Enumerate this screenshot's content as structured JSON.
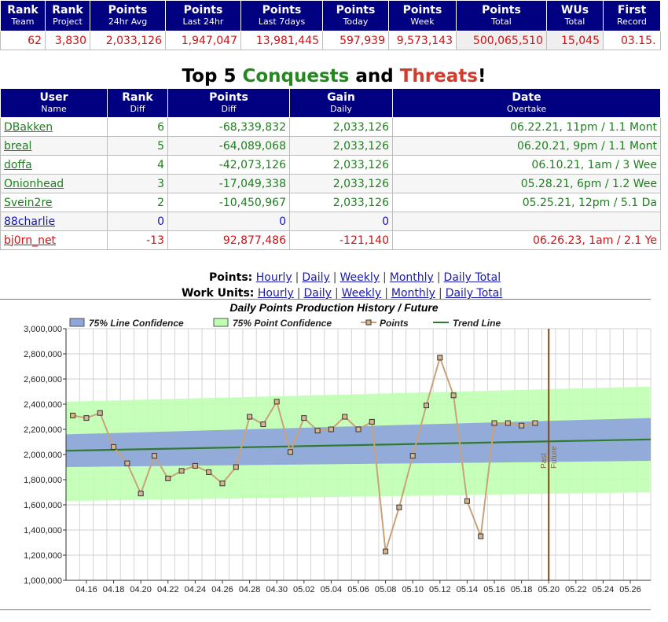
{
  "stats_table": {
    "headers": [
      {
        "top": "Rank",
        "sub": "Team"
      },
      {
        "top": "Rank",
        "sub": "Project"
      },
      {
        "top": "Points",
        "sub": "24hr Avg"
      },
      {
        "top": "Points",
        "sub": "Last 24hr"
      },
      {
        "top": "Points",
        "sub": "Last 7days"
      },
      {
        "top": "Points",
        "sub": "Today"
      },
      {
        "top": "Points",
        "sub": "Week"
      },
      {
        "top": "Points",
        "sub": "Total"
      },
      {
        "top": "WUs",
        "sub": "Total"
      },
      {
        "top": "First",
        "sub": "Record"
      }
    ],
    "row": [
      "62",
      "3,830",
      "2,033,126",
      "1,947,047",
      "13,981,445",
      "597,939",
      "9,573,143",
      "500,065,510",
      "15,045",
      "03.15."
    ]
  },
  "section_title": {
    "part1": "Top 5 ",
    "part2": "Conquests",
    "part3": " and ",
    "part4": "Threats",
    "part5": "!"
  },
  "conquest_table": {
    "headers": [
      {
        "top": "User",
        "sub": "Name"
      },
      {
        "top": "Rank",
        "sub": "Diff"
      },
      {
        "top": "Points",
        "sub": "Diff"
      },
      {
        "top": "Gain",
        "sub": "Daily"
      },
      {
        "top": "Date",
        "sub": "Overtake"
      }
    ],
    "rows": [
      {
        "user": "DBakken",
        "rank_diff": "6",
        "points_diff": "-68,339,832",
        "gain": "2,033,126",
        "date": "06.22.21, 11pm / 1.1 Mont",
        "status": "green"
      },
      {
        "user": "breal",
        "rank_diff": "5",
        "points_diff": "-64,089,068",
        "gain": "2,033,126",
        "date": "06.20.21, 9pm / 1.1 Mont",
        "status": "green"
      },
      {
        "user": "doffa",
        "rank_diff": "4",
        "points_diff": "-42,073,126",
        "gain": "2,033,126",
        "date": "06.10.21, 1am / 3 Wee",
        "status": "green"
      },
      {
        "user": "Onionhead",
        "rank_diff": "3",
        "points_diff": "-17,049,338",
        "gain": "2,033,126",
        "date": "05.28.21, 6pm / 1.2 Wee",
        "status": "green"
      },
      {
        "user": "Svein2re",
        "rank_diff": "2",
        "points_diff": "-10,450,967",
        "gain": "2,033,126",
        "date": "05.25.21, 12pm / 5.1 Da",
        "status": "green"
      },
      {
        "user": "88charlie",
        "rank_diff": "0",
        "points_diff": "0",
        "gain": "0",
        "date": "",
        "status": "blue"
      },
      {
        "user": "bj0rn_net",
        "rank_diff": "-13",
        "points_diff": "92,877,486",
        "gain": "-121,140",
        "date": "06.26.23, 1am / 2.1 Ye",
        "status": "red"
      }
    ]
  },
  "points_links": {
    "label": "Points:",
    "items": [
      "Hourly",
      "Daily",
      "Weekly",
      "Monthly",
      "Daily Total"
    ]
  },
  "wu_links": {
    "label": "Work Units:",
    "items": [
      "Hourly",
      "Daily",
      "Weekly",
      "Monthly",
      "Daily Total"
    ]
  },
  "colors": {
    "header_bg": "#000080",
    "line_confidence": "#8fa6da",
    "point_confidence": "#bfffb2",
    "points_line": "#c9a27a",
    "trend_line": "#2f7a2f",
    "past_future_line": "#8b4513"
  },
  "chart_data": {
    "type": "line",
    "title": "Daily Points Production History / Future",
    "legend": [
      "75% Line Confidence",
      "75% Point Confidence",
      "Points",
      "Trend Line"
    ],
    "legend_position": "top",
    "x_tick_labels": [
      "04.16",
      "04.18",
      "04.20",
      "04.22",
      "04.24",
      "04.26",
      "04.28",
      "04.30",
      "05.02",
      "05.04",
      "05.06",
      "05.08",
      "05.10",
      "05.12",
      "05.14",
      "05.16",
      "05.18",
      "05.20",
      "05.22",
      "05.24",
      "05.26"
    ],
    "y_tick_labels": [
      "1,000,000",
      "1,200,000",
      "1,400,000",
      "1,600,000",
      "1,800,000",
      "2,000,000",
      "2,200,000",
      "2,400,000",
      "2,600,000",
      "2,800,000",
      "3,000,000"
    ],
    "ylim": [
      1000000,
      3000000
    ],
    "x_start": "04.15",
    "x_end": "05.27",
    "grid": true,
    "divider": {
      "x": "05.20",
      "labels": [
        "Past",
        "Future"
      ]
    },
    "points": {
      "x": [
        "04.15",
        "04.16",
        "04.17",
        "04.18",
        "04.19",
        "04.20",
        "04.21",
        "04.22",
        "04.23",
        "04.24",
        "04.25",
        "04.26",
        "04.27",
        "04.28",
        "04.29",
        "04.30",
        "05.01",
        "05.02",
        "05.03",
        "05.04",
        "05.05",
        "05.06",
        "05.07",
        "05.08",
        "05.09",
        "05.10",
        "05.11",
        "05.12",
        "05.13",
        "05.14",
        "05.15",
        "05.16",
        "05.17",
        "05.18",
        "05.19"
      ],
      "y": [
        2310000,
        2290000,
        2330000,
        2060000,
        1930000,
        1690000,
        1990000,
        1810000,
        1870000,
        1910000,
        1860000,
        1770000,
        1900000,
        2300000,
        2240000,
        2420000,
        2020000,
        2290000,
        2190000,
        2200000,
        2300000,
        2200000,
        2260000,
        1230000,
        1580000,
        1990000,
        2390000,
        2770000,
        2470000,
        1630000,
        1350000,
        2250000,
        2250000,
        2230000,
        2250000
      ]
    },
    "trend_line": {
      "x": [
        "04.15",
        "05.27"
      ],
      "y": [
        2030000,
        2120000
      ]
    },
    "line_confidence": {
      "x": [
        "04.15",
        "05.27"
      ],
      "lower": [
        1900000,
        1950000
      ],
      "upper": [
        2160000,
        2290000
      ]
    },
    "point_confidence": {
      "x": [
        "04.15",
        "05.27"
      ],
      "lower": [
        1630000,
        1700000
      ],
      "upper": [
        2420000,
        2540000
      ]
    }
  }
}
